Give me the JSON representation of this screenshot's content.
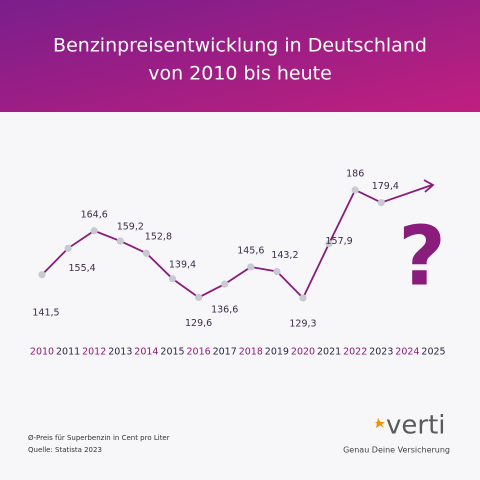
{
  "chart_data": {
    "type": "line",
    "title": [
      "Benzinpreisentwicklung in Deutschland",
      "von 2010 bis heute"
    ],
    "categories": [
      "2010",
      "2011",
      "2012",
      "2013",
      "2014",
      "2015",
      "2016",
      "2017",
      "2018",
      "2019",
      "2020",
      "2021",
      "2022",
      "2023",
      "2024",
      "2025"
    ],
    "values": [
      141.5,
      155.4,
      164.6,
      159.2,
      152.8,
      139.4,
      129.6,
      136.6,
      145.6,
      143.2,
      129.3,
      157.9,
      186,
      179.4,
      null,
      null
    ],
    "value_labels": [
      "141,5",
      "155,4",
      "164,6",
      "159,2",
      "152,8",
      "139,4",
      "129,6",
      "136,6",
      "145,6",
      "143,2",
      "129,3",
      "157,9",
      "186",
      "179,4",
      null,
      null
    ],
    "color": "#8a1c7c",
    "point_color": "#c9c9d1",
    "annotation": "?",
    "footnotes": [
      "Ø-Preis für Superbenzin in Cent pro Liter",
      "Quelle: Statista 2023"
    ],
    "brand": {
      "name": "verti",
      "tagline": "Genau Deine Versicherung"
    }
  }
}
